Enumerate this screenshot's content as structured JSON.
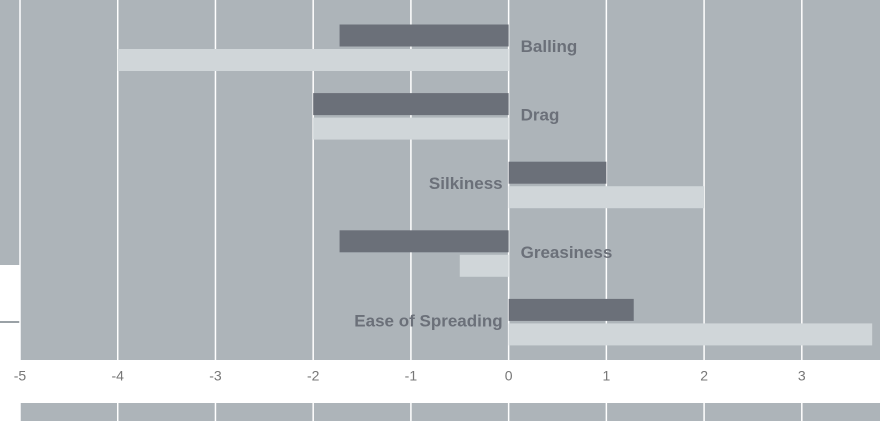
{
  "chart_data": {
    "type": "hbar",
    "categories": [
      "Balling",
      "Drag",
      "Silkiness",
      "Greasiness",
      "Ease of Spreading"
    ],
    "series": [
      {
        "color": "#6b7079",
        "values": [
          -1.73,
          -2,
          1,
          -1.73,
          1.28
        ]
      },
      {
        "color": "#d0d6d9",
        "values": [
          -4,
          -2,
          2,
          -0.5,
          3.72
        ]
      }
    ],
    "xlim": [
      -5,
      3.8
    ],
    "xticks": [
      -5,
      -4,
      -3,
      -2,
      -1,
      0,
      1,
      2,
      3
    ],
    "grid": true
  }
}
